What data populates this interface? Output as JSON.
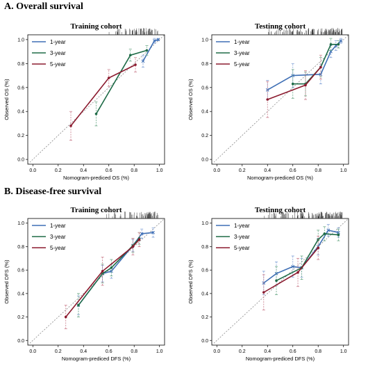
{
  "sections": {
    "a_title": "A. Overall survival",
    "b_title": "B. Disease-free survival"
  },
  "colors": {
    "one_year": "#3f6fb5",
    "three_year": "#1e6b47",
    "five_year": "#8b1a2e",
    "error_one_year": "#7f9fd6",
    "error_three_year": "#6aa886",
    "error_five_year": "#c97b8a",
    "reference": "#888888"
  },
  "chart_data": [
    {
      "id": "os-training",
      "type": "line",
      "title": "Training cohort",
      "xlabel": "Nomogram-prediced OS (%)",
      "ylabel": "Observed OS (%)",
      "xlim": [
        0,
        1
      ],
      "ylim": [
        0,
        1
      ],
      "ticks": [
        "0.0",
        "0.2",
        "0.4",
        "0.6",
        "0.8",
        "1.0"
      ],
      "reference_line": true,
      "rug": "top",
      "legend": {
        "position": "top-left",
        "entries": [
          "1-year",
          "3-year",
          "5-year"
        ]
      },
      "series": [
        {
          "name": "1-year",
          "x": [
            0.87,
            0.96,
            0.99
          ],
          "y": [
            0.82,
            0.99,
            1.0
          ],
          "err": [
            0.05,
            0.02,
            0.01
          ]
        },
        {
          "name": "3-year",
          "x": [
            0.5,
            0.77,
            0.9
          ],
          "y": [
            0.38,
            0.87,
            0.91
          ],
          "err": [
            0.1,
            0.05,
            0.04
          ]
        },
        {
          "name": "5-year",
          "x": [
            0.3,
            0.6,
            0.81
          ],
          "y": [
            0.28,
            0.68,
            0.79
          ],
          "err": [
            0.12,
            0.07,
            0.06
          ]
        }
      ]
    },
    {
      "id": "os-testing",
      "type": "line",
      "title": "Testinng cohort",
      "xlabel": "Nomogram-prediced OS (%)",
      "ylabel": "Observed OS (%)",
      "xlim": [
        0,
        1
      ],
      "ylim": [
        0,
        1
      ],
      "ticks": [
        "0.0",
        "0.2",
        "0.4",
        "0.6",
        "0.8",
        "1.0"
      ],
      "reference_line": true,
      "rug": "top",
      "legend": {
        "position": "top-left",
        "entries": [
          "1-year",
          "3-year",
          "5-year"
        ]
      },
      "series": [
        {
          "name": "1-year",
          "x": [
            0.4,
            0.6,
            0.82,
            0.9,
            0.94,
            0.98
          ],
          "y": [
            0.58,
            0.7,
            0.71,
            0.9,
            0.95,
            0.99
          ],
          "err": [
            0.08,
            0.1,
            0.08,
            0.05,
            0.04,
            0.02
          ]
        },
        {
          "name": "3-year",
          "x": [
            0.6,
            0.7,
            0.82,
            0.9,
            0.96
          ],
          "y": [
            0.63,
            0.63,
            0.77,
            0.96,
            0.96
          ],
          "err": [
            0.12,
            0.1,
            0.08,
            0.05,
            0.03
          ]
        },
        {
          "name": "5-year",
          "x": [
            0.4,
            0.7,
            0.82
          ],
          "y": [
            0.5,
            0.62,
            0.77
          ],
          "err": [
            0.15,
            0.12,
            0.1
          ]
        }
      ]
    },
    {
      "id": "dfs-training",
      "type": "line",
      "title": "Training cohort",
      "xlabel": "Nomogram-prediced DFS (%)",
      "ylabel": "Observed DFS (%)",
      "xlim": [
        0,
        1
      ],
      "ylim": [
        0,
        1
      ],
      "ticks": [
        "0.0",
        "0.2",
        "0.4",
        "0.6",
        "0.8",
        "1.0"
      ],
      "reference_line": true,
      "rug": "top",
      "legend": {
        "position": "top-left",
        "entries": [
          "1-year",
          "3-year",
          "5-year"
        ]
      },
      "series": [
        {
          "name": "1-year",
          "x": [
            0.36,
            0.55,
            0.62,
            0.79,
            0.86,
            0.95
          ],
          "y": [
            0.3,
            0.57,
            0.59,
            0.81,
            0.91,
            0.92
          ],
          "err": [
            0.08,
            0.07,
            0.06,
            0.05,
            0.04,
            0.04
          ]
        },
        {
          "name": "3-year",
          "x": [
            0.36,
            0.55,
            0.62,
            0.79,
            0.84
          ],
          "y": [
            0.3,
            0.57,
            0.62,
            0.81,
            0.87
          ],
          "err": [
            0.1,
            0.08,
            0.07,
            0.06,
            0.05
          ]
        },
        {
          "name": "5-year",
          "x": [
            0.26,
            0.55,
            0.79,
            0.84
          ],
          "y": [
            0.2,
            0.59,
            0.8,
            0.86
          ],
          "err": [
            0.1,
            0.12,
            0.07,
            0.06
          ]
        }
      ]
    },
    {
      "id": "dfs-testing",
      "type": "line",
      "title": "Testinng cohort",
      "xlabel": "Nomogram-prediced DFS (%)",
      "ylabel": "Observed DFS (%)",
      "xlim": [
        0,
        1
      ],
      "ylim": [
        0,
        1
      ],
      "ticks": [
        "0.0",
        "0.2",
        "0.4",
        "0.6",
        "0.8",
        "1.0"
      ],
      "reference_line": true,
      "rug": "top",
      "legend": {
        "position": "top-left",
        "entries": [
          "1-year",
          "3-year",
          "5-year"
        ]
      },
      "series": [
        {
          "name": "1-year",
          "x": [
            0.37,
            0.47,
            0.6,
            0.67,
            0.8,
            0.88,
            0.96
          ],
          "y": [
            0.49,
            0.57,
            0.63,
            0.62,
            0.8,
            0.94,
            0.92
          ],
          "err": [
            0.1,
            0.1,
            0.09,
            0.08,
            0.07,
            0.05,
            0.04
          ]
        },
        {
          "name": "3-year",
          "x": [
            0.47,
            0.67,
            0.8,
            0.85,
            0.96
          ],
          "y": [
            0.51,
            0.62,
            0.86,
            0.91,
            0.9
          ],
          "err": [
            0.12,
            0.1,
            0.08,
            0.06,
            0.05
          ]
        },
        {
          "name": "5-year",
          "x": [
            0.37,
            0.64,
            0.8
          ],
          "y": [
            0.41,
            0.58,
            0.79
          ],
          "err": [
            0.15,
            0.12,
            0.1
          ]
        }
      ]
    }
  ]
}
